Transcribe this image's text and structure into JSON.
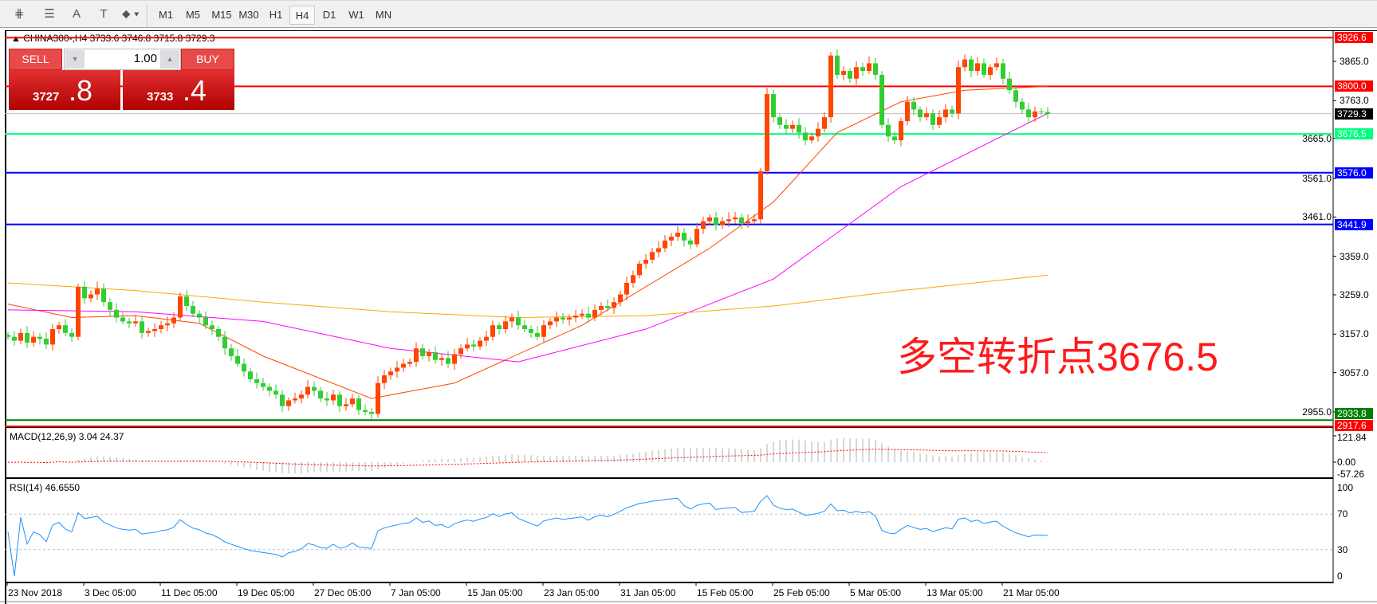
{
  "toolbar": {
    "icons": [
      "elliott-wave-icon",
      "fibonacci-icon",
      "text-icon",
      "text-label-icon",
      "arrows-dropdown-icon"
    ],
    "icon_glyphs": [
      "⋕",
      "☰",
      "A",
      "T",
      "⬥"
    ],
    "timeframes": [
      "M1",
      "M5",
      "M15",
      "M30",
      "H1",
      "H4",
      "D1",
      "W1",
      "MN"
    ],
    "selected": "H4"
  },
  "chart": {
    "header": "CHINA300-,H4  3733.6 3746.8 3715.8 3729.3",
    "annotation": "多空转折点3676.5",
    "colors": {
      "up": "#ff4500",
      "down": "#32cd32",
      "ma_fast": "#ff4500",
      "ma_mid": "#ff00ff",
      "ma_slow": "#ffa500",
      "grid_bg": "#ffffff"
    }
  },
  "trade": {
    "sell_label": "SELL",
    "buy_label": "BUY",
    "lots": "1.00",
    "sell_big": "3727",
    "sell_small": ".8",
    "buy_big": "3733",
    "buy_small": ".4"
  },
  "chart_data": [
    {
      "type": "candlestick",
      "symbol": "CHINA300-",
      "timeframe": "H4",
      "ylim": [
        2910,
        3945
      ],
      "y_ticks": [
        "3865.0",
        "3763.0",
        "3665.0",
        "3561.0",
        "3461.0",
        "3359.0",
        "3259.0",
        "3157.0",
        "3057.0",
        "2955.0"
      ],
      "x_ticks": [
        "23 Nov 2018",
        "3 Dec 05:00",
        "11 Dec 05:00",
        "19 Dec 05:00",
        "27 Dec 05:00",
        "7 Jan 05:00",
        "15 Jan 05:00",
        "23 Jan 05:00",
        "31 Jan 05:00",
        "15 Feb 05:00",
        "25 Feb 05:00",
        "5 Mar 05:00",
        "13 Mar 05:00",
        "21 Mar 05:00"
      ],
      "last_ohlc": [
        3733.6,
        3746.8,
        3715.8,
        3729.3
      ],
      "closes": [
        3150,
        3140,
        3160,
        3135,
        3150,
        3145,
        3130,
        3170,
        3180,
        3160,
        3150,
        3280,
        3250,
        3260,
        3275,
        3240,
        3220,
        3200,
        3190,
        3185,
        3190,
        3160,
        3165,
        3170,
        3180,
        3185,
        3200,
        3255,
        3230,
        3210,
        3200,
        3180,
        3170,
        3150,
        3120,
        3100,
        3080,
        3060,
        3040,
        3030,
        3020,
        3010,
        3000,
        2970,
        2985,
        2990,
        3000,
        3020,
        3010,
        2990,
        2985,
        3000,
        2970,
        2975,
        2990,
        2960,
        2955,
        2950,
        3030,
        3050,
        3060,
        3070,
        3080,
        3085,
        3120,
        3100,
        3110,
        3090,
        3095,
        3080,
        3105,
        3120,
        3130,
        3125,
        3140,
        3150,
        3180,
        3170,
        3190,
        3200,
        3180,
        3170,
        3160,
        3150,
        3180,
        3190,
        3200,
        3195,
        3200,
        3205,
        3210,
        3200,
        3220,
        3230,
        3225,
        3240,
        3260,
        3290,
        3310,
        3340,
        3350,
        3370,
        3380,
        3400,
        3410,
        3420,
        3400,
        3390,
        3430,
        3450,
        3460,
        3440,
        3450,
        3455,
        3460,
        3445,
        3450,
        3455,
        3580,
        3780,
        3720,
        3700,
        3690,
        3700,
        3680,
        3660,
        3670,
        3690,
        3720,
        3880,
        3830,
        3840,
        3820,
        3850,
        3840,
        3860,
        3830,
        3700,
        3670,
        3660,
        3710,
        3760,
        3740,
        3720,
        3730,
        3700,
        3720,
        3740,
        3730,
        3850,
        3870,
        3840,
        3860,
        3830,
        3850,
        3860,
        3820,
        3790,
        3760,
        3740,
        3720,
        3735,
        3733.6,
        3729.3
      ],
      "moving_averages": [
        {
          "color": "#ff4500",
          "points": [
            [
              0,
              3235
            ],
            [
              10,
              3200
            ],
            [
              20,
              3205
            ],
            [
              30,
              3185
            ],
            [
              40,
              3100
            ],
            [
              57,
              2990
            ],
            [
              70,
              3030
            ],
            [
              90,
              3180
            ],
            [
              110,
              3380
            ],
            [
              120,
              3500
            ],
            [
              130,
              3680
            ],
            [
              140,
              3760
            ],
            [
              150,
              3790
            ],
            [
              163,
              3800
            ]
          ]
        },
        {
          "color": "#ff00ff",
          "points": [
            [
              0,
              3220
            ],
            [
              20,
              3215
            ],
            [
              40,
              3190
            ],
            [
              60,
              3120
            ],
            [
              80,
              3085
            ],
            [
              100,
              3170
            ],
            [
              120,
              3300
            ],
            [
              140,
              3540
            ],
            [
              163,
              3730
            ]
          ]
        },
        {
          "color": "#ffa500",
          "points": [
            [
              0,
              3290
            ],
            [
              20,
              3270
            ],
            [
              40,
              3240
            ],
            [
              60,
              3215
            ],
            [
              80,
              3200
            ],
            [
              100,
              3205
            ],
            [
              120,
              3230
            ],
            [
              140,
              3270
            ],
            [
              163,
              3310
            ]
          ]
        }
      ],
      "levels": [
        {
          "value": "3926.6",
          "color": "#ff0000"
        },
        {
          "value": "3800.0",
          "color": "#ff0000"
        },
        {
          "value": "3729.3",
          "color": "#000000",
          "line": "#c0c0c0"
        },
        {
          "value": "3676.5",
          "color": "#00ff7f"
        },
        {
          "value": "3576.0",
          "color": "#0000ff"
        },
        {
          "value": "3441.9",
          "color": "#0000ff"
        },
        {
          "value": "2933.8",
          "color": "#008000"
        },
        {
          "value": "2917.6",
          "color": "#ff0000"
        }
      ]
    },
    {
      "type": "macd",
      "label": "MACD(12,26,9) 3.04 24.37",
      "ylim": [
        -57.26,
        121.84
      ],
      "y_ticks": [
        "121.84",
        "0.00",
        "-57.26"
      ]
    },
    {
      "type": "rsi",
      "label": "RSI(14) 46.6550",
      "ylim": [
        0,
        100
      ],
      "y_ticks": [
        "100",
        "70",
        "30",
        "0"
      ],
      "levels": [
        70,
        30
      ]
    }
  ]
}
